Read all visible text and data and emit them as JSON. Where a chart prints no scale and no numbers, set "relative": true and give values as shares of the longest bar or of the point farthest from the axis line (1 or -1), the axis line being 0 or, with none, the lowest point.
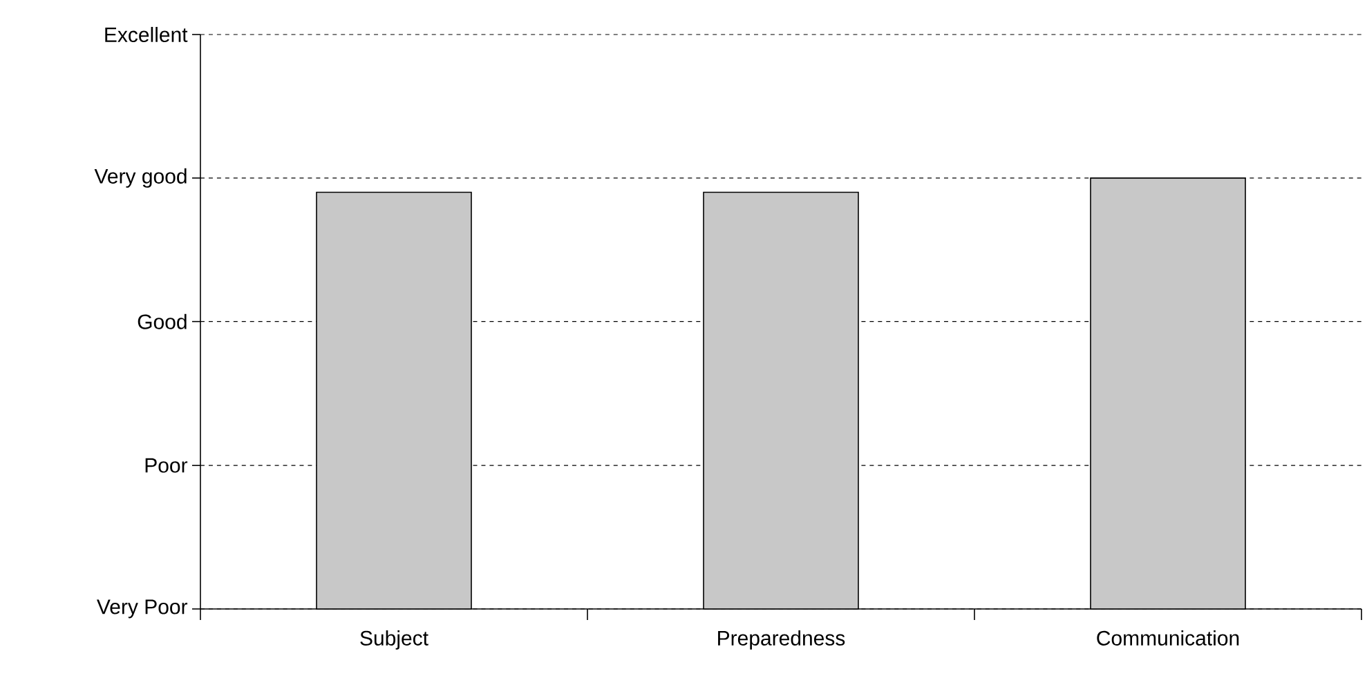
{
  "chart_data": {
    "type": "bar",
    "categories": [
      "Subject",
      "Preparedness",
      "Communication"
    ],
    "values": [
      0.967,
      0.967,
      1
    ],
    "relative": true,
    "color": "#c8c8c8",
    "ref_lines": [
      {
        "axis": "y",
        "value": 0,
        "label": "Very Poor",
        "line_style": "dashed"
      },
      {
        "axis": "y",
        "value": 0.333,
        "label": "Poor",
        "line_style": "dashed"
      },
      {
        "axis": "y",
        "value": 0.667,
        "label": "Good",
        "line_style": "dashed"
      },
      {
        "axis": "y",
        "value": 1,
        "label": "Very good",
        "line_style": "dashed"
      },
      {
        "axis": "y",
        "value": 1.333,
        "label": "Excellent",
        "line_style": "dashed"
      }
    ]
  }
}
